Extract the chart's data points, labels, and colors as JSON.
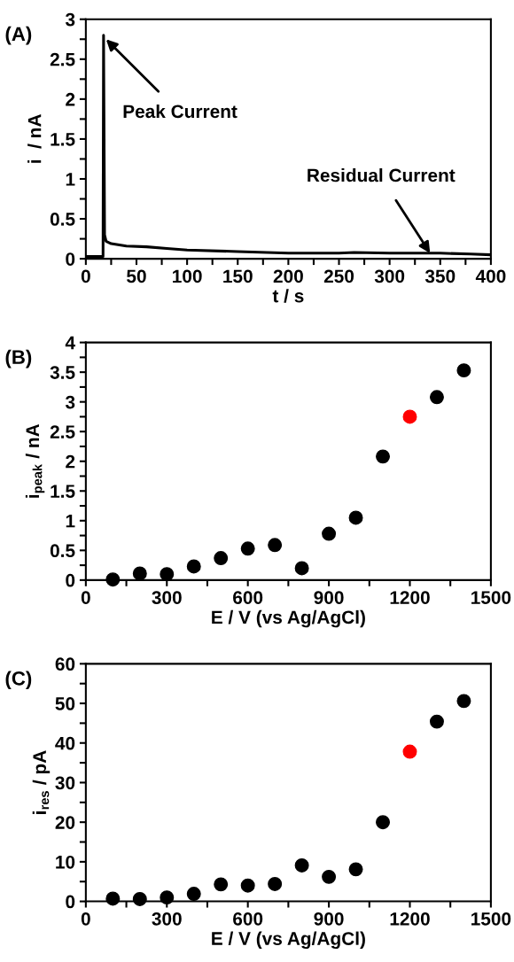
{
  "chart_data": [
    {
      "type": "line",
      "title": "(A)",
      "xlabel": "t / s",
      "ylabel": "i  / nA",
      "x": [
        0,
        17,
        17.5,
        18.5,
        20,
        25,
        40,
        60,
        80,
        100,
        150,
        200,
        250,
        265,
        300,
        350,
        380,
        400
      ],
      "series": [
        {
          "color": "#000000",
          "values": [
            0.03,
            0.03,
            2.8,
            0.3,
            0.22,
            0.19,
            0.16,
            0.15,
            0.13,
            0.11,
            0.09,
            0.07,
            0.07,
            0.08,
            0.07,
            0.07,
            0.06,
            0.05
          ]
        }
      ],
      "xlim": [
        0,
        400
      ],
      "ylim": [
        0,
        3
      ],
      "xticks": [
        0,
        {
          "value": 25,
          "label": null
        },
        50,
        {
          "value": 75,
          "label": null
        },
        100,
        {
          "value": 125,
          "label": null
        },
        150,
        {
          "value": 175,
          "label": null
        },
        200,
        {
          "value": 225,
          "label": null
        },
        250,
        {
          "value": 275,
          "label": null
        },
        300,
        {
          "value": 325,
          "label": null
        },
        350,
        {
          "value": 375,
          "label": null
        },
        400
      ],
      "yticks": [
        0,
        {
          "value": 0.25,
          "label": null
        },
        0.5,
        {
          "value": 0.75,
          "label": null
        },
        1,
        {
          "value": 1.25,
          "label": null
        },
        1.5,
        {
          "value": 1.75,
          "label": null
        },
        2,
        {
          "value": 2.25,
          "label": null
        },
        2.5,
        {
          "value": 2.75,
          "label": null
        },
        3
      ],
      "annotations": [
        {
          "text": "Peak Current",
          "x": 20,
          "y": 2.75
        },
        {
          "text": "Residual Current",
          "x": 340,
          "y": 0.07
        }
      ],
      "marker": "none",
      "line_style": "solid",
      "grid": false,
      "legend": false
    },
    {
      "type": "scatter",
      "title": "(B)",
      "xlabel": "E / V (vs Ag/AgCl)",
      "ylabel": "i$_{peak}$ / nA",
      "x": [
        100,
        200,
        300,
        400,
        500,
        600,
        700,
        800,
        900,
        1000,
        1100,
        1200,
        1300,
        1400
      ],
      "series": [
        {
          "values": [
            0.01,
            0.11,
            0.1,
            0.23,
            0.37,
            0.53,
            0.59,
            0.2,
            0.78,
            1.05,
            2.08,
            2.75,
            3.08,
            3.53
          ],
          "colors": [
            "#000000",
            "#000000",
            "#000000",
            "#000000",
            "#000000",
            "#000000",
            "#000000",
            "#000000",
            "#000000",
            "#000000",
            "#000000",
            "#ff0000",
            "#000000",
            "#000000"
          ]
        }
      ],
      "xlim": [
        0,
        1500
      ],
      "ylim": [
        0,
        4
      ],
      "xticks": [
        0,
        {
          "value": 150,
          "label": null
        },
        300,
        {
          "value": 450,
          "label": null
        },
        600,
        {
          "value": 750,
          "label": null
        },
        900,
        {
          "value": 1050,
          "label": null
        },
        1200,
        {
          "value": 1350,
          "label": null
        },
        1500
      ],
      "yticks": [
        0,
        {
          "value": 0.25,
          "label": null
        },
        0.5,
        {
          "value": 0.75,
          "label": null
        },
        1,
        {
          "value": 1.25,
          "label": null
        },
        1.5,
        {
          "value": 1.75,
          "label": null
        },
        2,
        {
          "value": 2.25,
          "label": null
        },
        2.5,
        {
          "value": 2.75,
          "label": null
        },
        3,
        {
          "value": 3.25,
          "label": null
        },
        3.5,
        {
          "value": 3.75,
          "label": null
        },
        4
      ],
      "marker": "circle",
      "grid": false,
      "legend": false
    },
    {
      "type": "scatter",
      "title": "(C)",
      "xlabel": "E / V (vs Ag/AgCl)",
      "ylabel": "i$_{res}$ / pA",
      "x": [
        100,
        200,
        300,
        400,
        500,
        600,
        700,
        800,
        900,
        1000,
        1100,
        1200,
        1300,
        1400
      ],
      "series": [
        {
          "values": [
            0.7,
            0.6,
            1.0,
            1.9,
            4.3,
            4.0,
            4.4,
            9.1,
            6.2,
            8.1,
            20.0,
            37.8,
            45.4,
            50.6
          ],
          "colors": [
            "#000000",
            "#000000",
            "#000000",
            "#000000",
            "#000000",
            "#000000",
            "#000000",
            "#000000",
            "#000000",
            "#000000",
            "#000000",
            "#ff0000",
            "#000000",
            "#000000"
          ]
        }
      ],
      "xlim": [
        0,
        1500
      ],
      "ylim": [
        0,
        60
      ],
      "xticks": [
        0,
        {
          "value": 150,
          "label": null
        },
        300,
        {
          "value": 450,
          "label": null
        },
        600,
        {
          "value": 750,
          "label": null
        },
        900,
        {
          "value": 1050,
          "label": null
        },
        1200,
        {
          "value": 1350,
          "label": null
        },
        1500
      ],
      "yticks": [
        0,
        {
          "value": 5,
          "label": null
        },
        10,
        {
          "value": 15,
          "label": null
        },
        20,
        {
          "value": 25,
          "label": null
        },
        30,
        {
          "value": 35,
          "label": null
        },
        40,
        {
          "value": 45,
          "label": null
        },
        50,
        {
          "value": 55,
          "label": null
        },
        60
      ],
      "marker": "circle",
      "grid": false,
      "legend": false
    }
  ]
}
